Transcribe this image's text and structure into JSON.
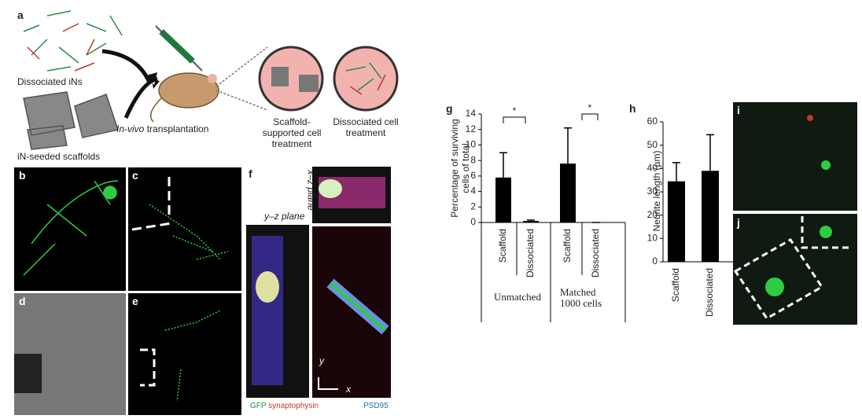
{
  "figure": {
    "panel_labels": [
      "a",
      "b",
      "c",
      "d",
      "e",
      "f",
      "g",
      "h",
      "i",
      "j"
    ],
    "schematic": {
      "dissociated": "Dissociated iNs",
      "seeded": "iN-seeded scaffolds",
      "transplant_italic": "In-vivo",
      "transplant": "transplantation",
      "scaffold_treatment": "Scaffold-supported cell treatment",
      "dissociated_treatment": "Dissociated cell treatment"
    },
    "panel_f": {
      "xz": "x–z plane",
      "yz": "y–z plane",
      "gfp": "GFP",
      "syn": "synaptophysin",
      "psd": "PSD95",
      "axis_y": "y",
      "axis_x": "x"
    }
  },
  "chart_data": [
    {
      "type": "bar",
      "ylabel": "Percentage of surviving cells of total",
      "categories": [
        "Scaffold",
        "Dissociated",
        "Scaffold",
        "Dissociated"
      ],
      "groups": [
        "Unmatched",
        "Matched 1000 cells"
      ],
      "values": [
        5.8,
        0.2,
        7.6,
        0
      ],
      "errors": [
        3.2,
        0.1,
        4.6,
        0
      ],
      "color": "#000000",
      "annotations": [
        "*",
        "*"
      ],
      "ylim": [
        0,
        14
      ],
      "yticks": [
        0,
        2,
        4,
        6,
        8,
        10,
        12,
        14
      ]
    },
    {
      "type": "bar",
      "ylabel": "Neurite length (µm)",
      "categories": [
        "Scaffold",
        "Dissociated"
      ],
      "values": [
        34.5,
        39
      ],
      "errors": [
        8,
        15.5
      ],
      "color": "#000000",
      "ylim": [
        0,
        60
      ],
      "yticks": [
        0,
        10,
        20,
        30,
        40,
        50,
        60
      ]
    }
  ]
}
